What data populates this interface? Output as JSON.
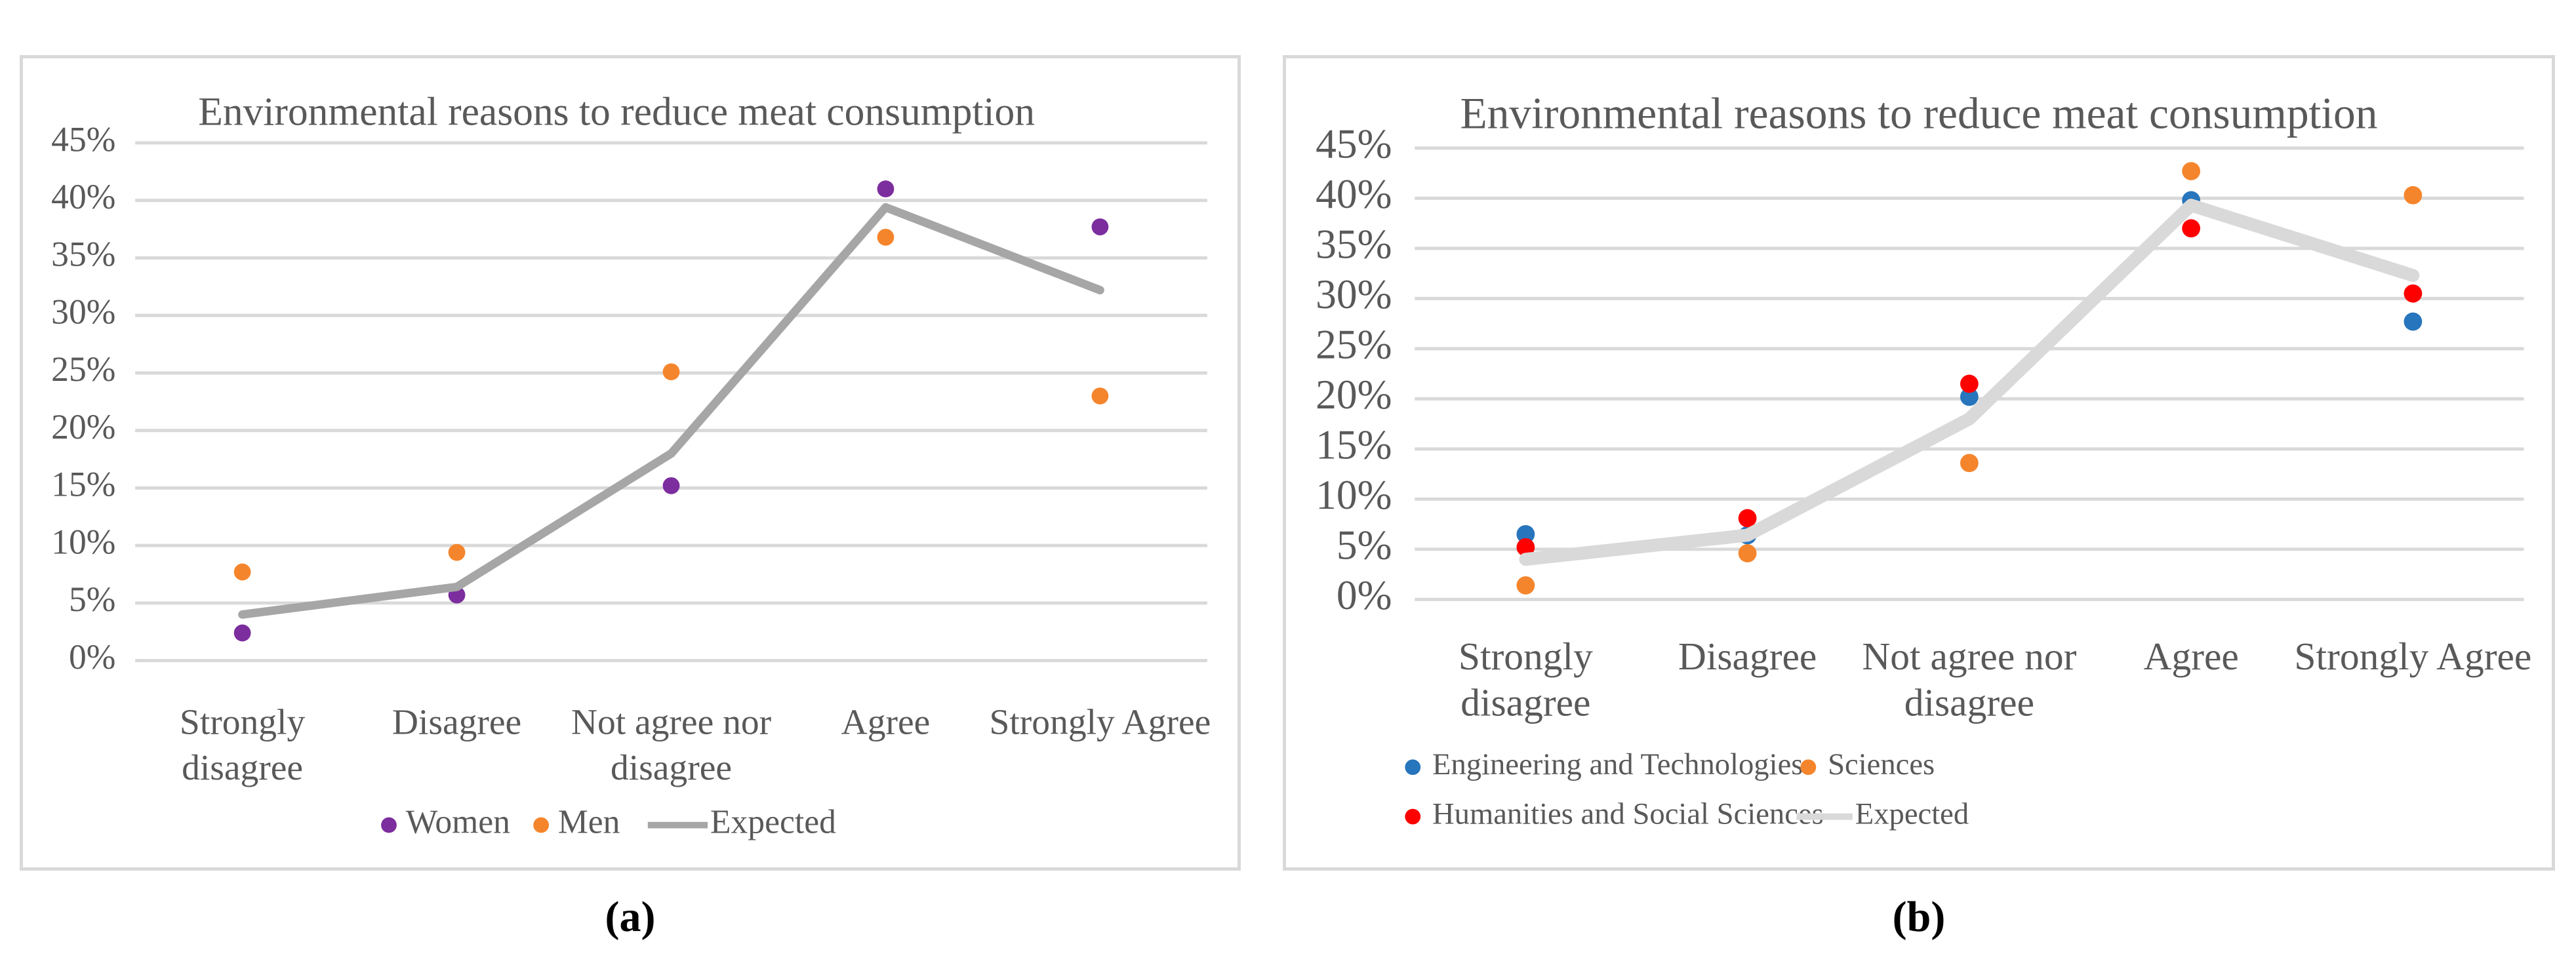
{
  "page": {
    "background": "#ffffff"
  },
  "colors": {
    "chart_text": "#595959",
    "gridline": "#D9D9D9",
    "panel_border": "#D9D9D9",
    "caption_text": "#000000",
    "women_purple": "#7C2D9E",
    "men_orange": "#F5852C",
    "expected_gray_a": "#A6A6A6",
    "engineering_blue": "#2775BC",
    "sciences_orange": "#F5852C",
    "humanities_red": "#FF0000",
    "expected_gray_b": "#D9D9D9"
  },
  "panels": [
    {
      "caption": "(a)"
    },
    {
      "caption": "(b)"
    }
  ],
  "chart_data": [
    {
      "type": "scatter",
      "title": "Environmental reasons to reduce meat consumption",
      "categories": [
        "Strongly disagree",
        "Disagree",
        "Not agree nor disagree",
        "Agree",
        "Strongly Agree"
      ],
      "category_lines": [
        [
          "Strongly",
          "disagree"
        ],
        [
          "Disagree"
        ],
        [
          "Not agree nor",
          "disagree"
        ],
        [
          "Agree"
        ],
        [
          "Strongly Agree"
        ]
      ],
      "xlabel": "",
      "ylabel": "",
      "ylim": [
        0,
        45
      ],
      "y_ticks": [
        "0%",
        "5%",
        "10%",
        "15%",
        "20%",
        "25%",
        "30%",
        "35%",
        "40%",
        "45%"
      ],
      "grid": true,
      "legend_position": "bottom",
      "series": [
        {
          "name": "Women",
          "type": "scatter",
          "color": "#7C2D9E",
          "values": [
            2.4,
            5.7,
            15.2,
            41.0,
            37.7
          ]
        },
        {
          "name": "Men",
          "type": "scatter",
          "color": "#F5852C",
          "values": [
            7.7,
            9.4,
            25.1,
            36.8,
            23.0
          ]
        },
        {
          "name": "Expected",
          "type": "line",
          "color": "#A6A6A6",
          "values": [
            4.0,
            6.4,
            18.0,
            39.4,
            32.2
          ]
        }
      ]
    },
    {
      "type": "scatter",
      "title": "Environmental reasons to reduce meat consumption",
      "categories": [
        "Strongly disagree",
        "Disagree",
        "Not agree nor disagree",
        "Agree",
        "Strongly Agree"
      ],
      "category_lines": [
        [
          "Strongly",
          "disagree"
        ],
        [
          "Disagree"
        ],
        [
          "Not agree nor",
          "disagree"
        ],
        [
          "Agree"
        ],
        [
          "Strongly Agree"
        ]
      ],
      "xlabel": "",
      "ylabel": "",
      "ylim": [
        0,
        45
      ],
      "y_ticks": [
        "0%",
        "5%",
        "10%",
        "15%",
        "20%",
        "25%",
        "30%",
        "35%",
        "40%",
        "45%"
      ],
      "grid": true,
      "legend_position": "bottom",
      "series": [
        {
          "name": "Engineering and Technologies",
          "type": "scatter",
          "color": "#2775BC",
          "values": [
            6.5,
            6.4,
            20.2,
            39.8,
            27.7
          ]
        },
        {
          "name": "Sciences",
          "type": "scatter",
          "color": "#F5852C",
          "values": [
            1.4,
            4.6,
            13.6,
            42.7,
            40.3
          ]
        },
        {
          "name": "Humanities and Social Sciences",
          "type": "scatter",
          "color": "#FF0000",
          "values": [
            5.2,
            8.1,
            21.5,
            37.0,
            30.5
          ]
        },
        {
          "name": "Expected",
          "type": "line",
          "color": "#D9D9D9",
          "values": [
            4.0,
            6.4,
            18.0,
            39.3,
            32.3
          ]
        }
      ]
    }
  ]
}
